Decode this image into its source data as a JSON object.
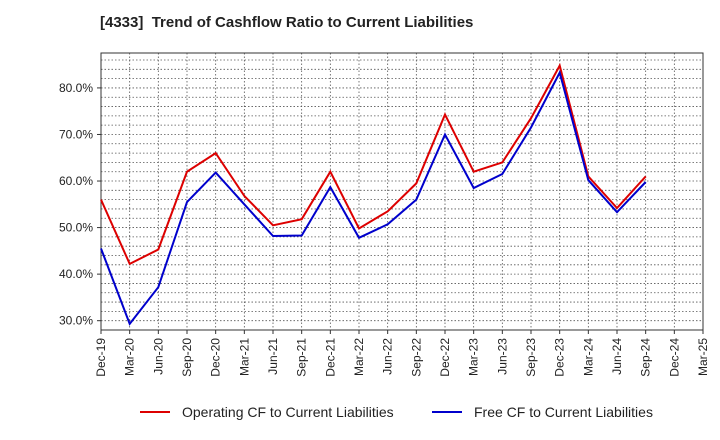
{
  "chart_data": {
    "type": "line",
    "title": "[4333]  Trend of Cashflow Ratio to Current Liabilities",
    "xlabel": "",
    "ylabel": "",
    "categories": [
      "Dec-19",
      "Mar-20",
      "Jun-20",
      "Sep-20",
      "Dec-20",
      "Mar-21",
      "Jun-21",
      "Sep-21",
      "Dec-21",
      "Mar-22",
      "Jun-22",
      "Sep-22",
      "Dec-22",
      "Mar-23",
      "Jun-23",
      "Sep-23",
      "Dec-23",
      "Mar-24",
      "Jun-24",
      "Sep-24",
      "Dec-24",
      "Mar-25"
    ],
    "ylim": [
      28,
      87.5
    ],
    "yticks": [
      "30.0%",
      "40.0%",
      "50.0%",
      "60.0%",
      "70.0%",
      "80.0%"
    ],
    "yticks_values": [
      30,
      40,
      50,
      60,
      70,
      80
    ],
    "grid": true,
    "legend_position": "bottom",
    "series": [
      {
        "name": "Operating CF to Current Liabilities",
        "color": "#dd0000",
        "values": [
          56.0,
          42.2,
          45.3,
          62.0,
          66.0,
          56.8,
          50.5,
          51.8,
          62.0,
          49.8,
          53.5,
          59.5,
          74.3,
          62.0,
          64.0,
          73.5,
          84.8,
          61.0,
          54.2,
          61.0,
          null,
          null
        ]
      },
      {
        "name": "Free CF to Current Liabilities",
        "color": "#0000cc",
        "values": [
          45.5,
          29.3,
          37.2,
          55.5,
          61.8,
          55.0,
          48.2,
          48.3,
          58.7,
          47.8,
          50.7,
          56.0,
          70.0,
          58.5,
          61.5,
          71.5,
          83.3,
          60.2,
          53.3,
          59.8,
          null,
          null
        ]
      }
    ]
  }
}
